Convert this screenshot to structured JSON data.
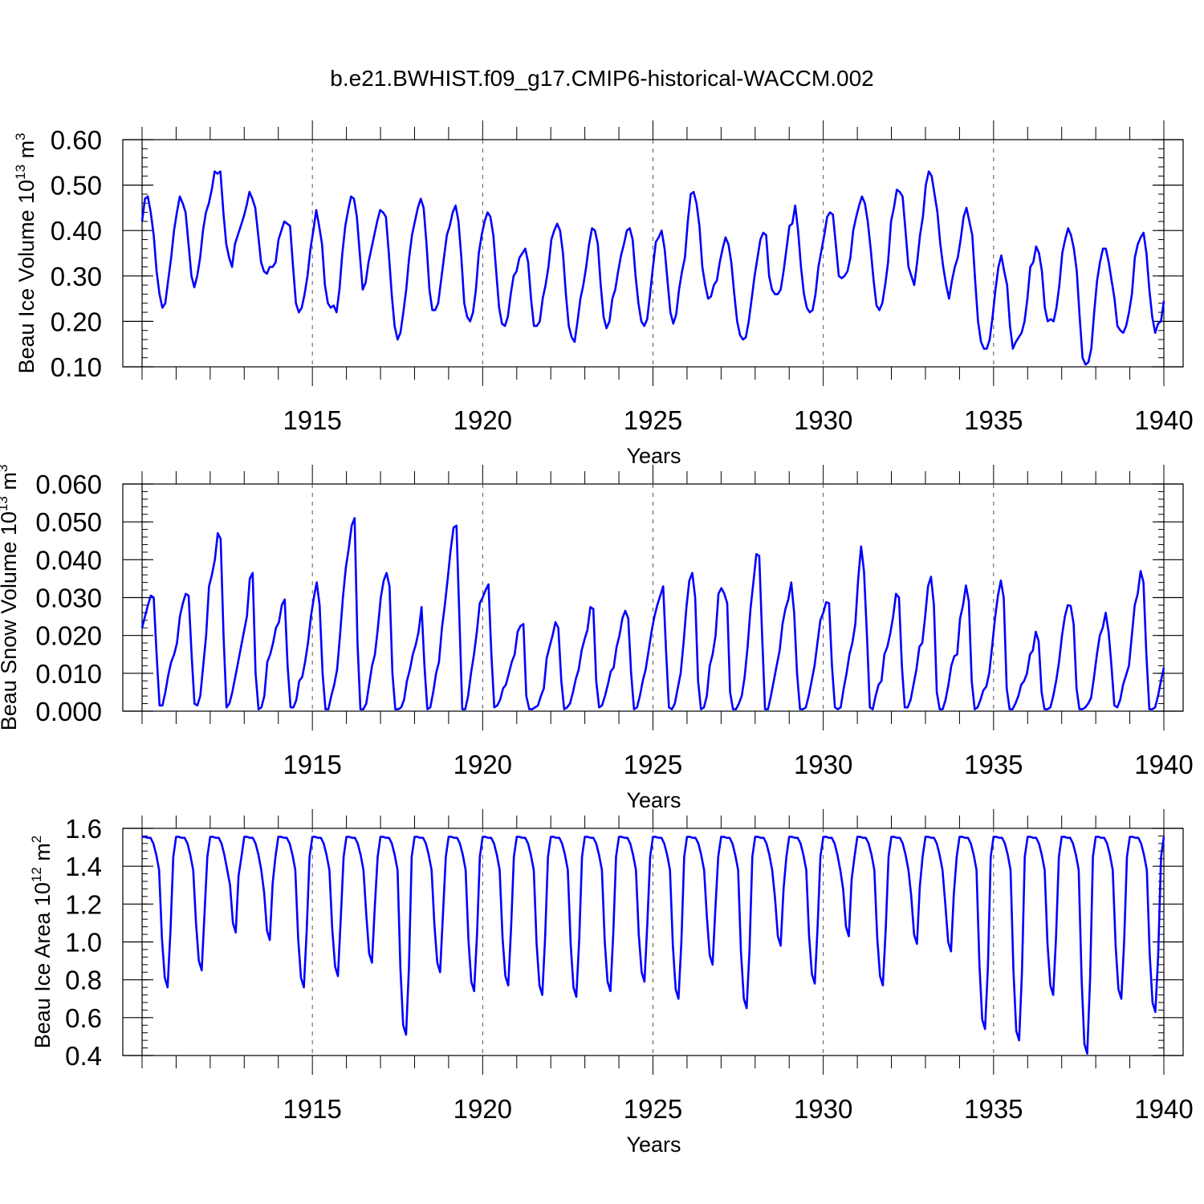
{
  "title": "b.e21.BWHIST.f09_g17.CMIP6-historical-WACCM.002",
  "series_color": "#0000ff",
  "chart_data": [
    {
      "type": "line",
      "ylabel": "Beau Ice Volume 10",
      "ylabel_exp": "13",
      "ylabel_unit": " m",
      "ylabel_unit_exp": "3",
      "xlabel": "Years",
      "xlim": [
        1910.0,
        1940.0
      ],
      "ylim": [
        0.1,
        0.6
      ],
      "yticks": [
        0.1,
        0.2,
        0.3,
        0.4,
        0.5,
        0.6
      ],
      "ytick_labels": [
        "0.10",
        "0.20",
        "0.30",
        "0.40",
        "0.50",
        "0.60"
      ],
      "xticks": [
        1915,
        1920,
        1925,
        1930,
        1935,
        1940
      ],
      "xtick_labels": [
        "1915",
        "1920",
        "1925",
        "1930",
        "1935",
        "1940"
      ],
      "start_year": 1910.0,
      "values": [
        0.42,
        0.47,
        0.475,
        0.44,
        0.39,
        0.31,
        0.26,
        0.23,
        0.24,
        0.29,
        0.34,
        0.4,
        0.44,
        0.475,
        0.46,
        0.44,
        0.37,
        0.3,
        0.275,
        0.3,
        0.34,
        0.4,
        0.44,
        0.46,
        0.49,
        0.53,
        0.525,
        0.53,
        0.44,
        0.37,
        0.34,
        0.32,
        0.37,
        0.39,
        0.41,
        0.43,
        0.455,
        0.485,
        0.47,
        0.45,
        0.39,
        0.33,
        0.31,
        0.305,
        0.32,
        0.32,
        0.33,
        0.38,
        0.4,
        0.42,
        0.415,
        0.41,
        0.32,
        0.24,
        0.22,
        0.23,
        0.26,
        0.3,
        0.36,
        0.4,
        0.445,
        0.41,
        0.37,
        0.28,
        0.24,
        0.23,
        0.235,
        0.22,
        0.27,
        0.35,
        0.41,
        0.445,
        0.475,
        0.47,
        0.43,
        0.35,
        0.27,
        0.285,
        0.33,
        0.36,
        0.39,
        0.42,
        0.445,
        0.44,
        0.43,
        0.35,
        0.26,
        0.19,
        0.16,
        0.175,
        0.22,
        0.27,
        0.34,
        0.39,
        0.42,
        0.45,
        0.47,
        0.45,
        0.37,
        0.27,
        0.225,
        0.225,
        0.24,
        0.29,
        0.34,
        0.39,
        0.41,
        0.44,
        0.455,
        0.42,
        0.34,
        0.24,
        0.21,
        0.2,
        0.22,
        0.27,
        0.35,
        0.39,
        0.42,
        0.44,
        0.43,
        0.39,
        0.31,
        0.23,
        0.195,
        0.19,
        0.21,
        0.26,
        0.3,
        0.31,
        0.34,
        0.35,
        0.36,
        0.33,
        0.25,
        0.19,
        0.19,
        0.2,
        0.25,
        0.28,
        0.32,
        0.38,
        0.4,
        0.415,
        0.4,
        0.35,
        0.26,
        0.19,
        0.165,
        0.155,
        0.2,
        0.25,
        0.28,
        0.32,
        0.37,
        0.405,
        0.4,
        0.37,
        0.28,
        0.21,
        0.185,
        0.2,
        0.25,
        0.27,
        0.31,
        0.345,
        0.37,
        0.4,
        0.405,
        0.38,
        0.3,
        0.24,
        0.2,
        0.19,
        0.205,
        0.26,
        0.32,
        0.375,
        0.385,
        0.4,
        0.36,
        0.29,
        0.22,
        0.195,
        0.215,
        0.27,
        0.31,
        0.34,
        0.42,
        0.48,
        0.485,
        0.46,
        0.41,
        0.32,
        0.28,
        0.25,
        0.255,
        0.28,
        0.29,
        0.33,
        0.36,
        0.385,
        0.37,
        0.33,
        0.26,
        0.2,
        0.17,
        0.16,
        0.165,
        0.2,
        0.25,
        0.3,
        0.34,
        0.38,
        0.395,
        0.39,
        0.3,
        0.27,
        0.26,
        0.26,
        0.27,
        0.31,
        0.36,
        0.41,
        0.415,
        0.455,
        0.4,
        0.32,
        0.26,
        0.23,
        0.22,
        0.225,
        0.26,
        0.32,
        0.355,
        0.39,
        0.43,
        0.44,
        0.435,
        0.37,
        0.3,
        0.295,
        0.3,
        0.31,
        0.34,
        0.4,
        0.43,
        0.455,
        0.475,
        0.46,
        0.42,
        0.36,
        0.29,
        0.235,
        0.225,
        0.24,
        0.28,
        0.33,
        0.42,
        0.45,
        0.49,
        0.485,
        0.475,
        0.4,
        0.32,
        0.3,
        0.28,
        0.33,
        0.39,
        0.43,
        0.5,
        0.53,
        0.52,
        0.48,
        0.44,
        0.37,
        0.32,
        0.28,
        0.25,
        0.29,
        0.32,
        0.34,
        0.38,
        0.43,
        0.45,
        0.42,
        0.39,
        0.29,
        0.2,
        0.155,
        0.14,
        0.14,
        0.16,
        0.21,
        0.27,
        0.32,
        0.345,
        0.31,
        0.28,
        0.19,
        0.14,
        0.155,
        0.165,
        0.175,
        0.2,
        0.25,
        0.32,
        0.33,
        0.365,
        0.35,
        0.31,
        0.23,
        0.2,
        0.205,
        0.2,
        0.23,
        0.28,
        0.35,
        0.38,
        0.405,
        0.39,
        0.36,
        0.31,
        0.21,
        0.12,
        0.105,
        0.11,
        0.14,
        0.22,
        0.29,
        0.33,
        0.36,
        0.36,
        0.33,
        0.29,
        0.25,
        0.19,
        0.18,
        0.175,
        0.19,
        0.22,
        0.26,
        0.34,
        0.37,
        0.385,
        0.395,
        0.35,
        0.27,
        0.21,
        0.175,
        0.195,
        0.2,
        0.245
      ]
    },
    {
      "type": "line",
      "ylabel": "Beau Snow Volume 10",
      "ylabel_exp": "13",
      "ylabel_unit": " m",
      "ylabel_unit_exp": "3",
      "xlabel": "Years",
      "xlim": [
        1910.0,
        1940.0
      ],
      "ylim": [
        0.0,
        0.06
      ],
      "yticks": [
        0.0,
        0.01,
        0.02,
        0.03,
        0.04,
        0.05,
        0.06
      ],
      "ytick_labels": [
        "0.000",
        "0.010",
        "0.020",
        "0.030",
        "0.040",
        "0.050",
        "0.060"
      ],
      "xticks": [
        1915,
        1920,
        1925,
        1930,
        1935,
        1940
      ],
      "xtick_labels": [
        "1915",
        "1920",
        "1925",
        "1930",
        "1935",
        "1940"
      ],
      "start_year": 1910.0,
      "values": [
        0.022,
        0.025,
        0.028,
        0.0305,
        0.03,
        0.015,
        0.0015,
        0.0015,
        0.005,
        0.0095,
        0.013,
        0.015,
        0.018,
        0.025,
        0.0285,
        0.031,
        0.0305,
        0.015,
        0.002,
        0.0015,
        0.004,
        0.012,
        0.02,
        0.033,
        0.036,
        0.04,
        0.047,
        0.0455,
        0.02,
        0.001,
        0.002,
        0.005,
        0.009,
        0.013,
        0.017,
        0.021,
        0.025,
        0.035,
        0.0365,
        0.01,
        0.0005,
        0.001,
        0.004,
        0.013,
        0.015,
        0.018,
        0.022,
        0.0235,
        0.028,
        0.0295,
        0.012,
        0.001,
        0.001,
        0.003,
        0.008,
        0.009,
        0.013,
        0.018,
        0.025,
        0.03,
        0.034,
        0.028,
        0.01,
        0.0005,
        0.0005,
        0.004,
        0.007,
        0.011,
        0.02,
        0.03,
        0.038,
        0.043,
        0.049,
        0.051,
        0.018,
        0.0005,
        0.0005,
        0.002,
        0.007,
        0.012,
        0.015,
        0.022,
        0.03,
        0.0345,
        0.0365,
        0.033,
        0.01,
        0.0005,
        0.0005,
        0.001,
        0.003,
        0.008,
        0.011,
        0.015,
        0.0175,
        0.021,
        0.0275,
        0.012,
        0.0005,
        0.001,
        0.005,
        0.01,
        0.013,
        0.022,
        0.028,
        0.035,
        0.0425,
        0.0485,
        0.049,
        0.025,
        0.0005,
        0.0005,
        0.004,
        0.01,
        0.015,
        0.021,
        0.0285,
        0.03,
        0.032,
        0.0335,
        0.015,
        0.001,
        0.0015,
        0.003,
        0.006,
        0.007,
        0.01,
        0.013,
        0.015,
        0.021,
        0.0225,
        0.023,
        0.004,
        0.0005,
        0.0005,
        0.001,
        0.0015,
        0.004,
        0.006,
        0.014,
        0.017,
        0.02,
        0.0235,
        0.022,
        0.008,
        0.0005,
        0.001,
        0.002,
        0.005,
        0.0085,
        0.011,
        0.016,
        0.019,
        0.0215,
        0.0275,
        0.027,
        0.008,
        0.001,
        0.0015,
        0.004,
        0.007,
        0.0105,
        0.0115,
        0.017,
        0.02,
        0.0245,
        0.0265,
        0.0245,
        0.01,
        0.0005,
        0.001,
        0.004,
        0.008,
        0.011,
        0.016,
        0.021,
        0.025,
        0.028,
        0.0305,
        0.033,
        0.016,
        0.001,
        0.0005,
        0.002,
        0.006,
        0.01,
        0.018,
        0.0275,
        0.0345,
        0.0365,
        0.03,
        0.008,
        0.0005,
        0.001,
        0.004,
        0.012,
        0.015,
        0.02,
        0.031,
        0.0325,
        0.031,
        0.0285,
        0.005,
        0.0005,
        0.0005,
        0.002,
        0.004,
        0.009,
        0.017,
        0.027,
        0.034,
        0.0415,
        0.041,
        0.02,
        0.0005,
        0.0005,
        0.004,
        0.008,
        0.012,
        0.016,
        0.023,
        0.027,
        0.0295,
        0.034,
        0.026,
        0.01,
        0.0005,
        0.0005,
        0.001,
        0.004,
        0.008,
        0.012,
        0.018,
        0.024,
        0.026,
        0.0288,
        0.0285,
        0.012,
        0.001,
        0.0005,
        0.001,
        0.006,
        0.01,
        0.015,
        0.018,
        0.023,
        0.035,
        0.0435,
        0.037,
        0.02,
        0.001,
        0.0005,
        0.004,
        0.007,
        0.008,
        0.015,
        0.017,
        0.0205,
        0.025,
        0.031,
        0.03,
        0.012,
        0.001,
        0.001,
        0.003,
        0.007,
        0.011,
        0.017,
        0.018,
        0.025,
        0.033,
        0.0355,
        0.028,
        0.005,
        0.0005,
        0.0005,
        0.003,
        0.007,
        0.012,
        0.0145,
        0.015,
        0.0245,
        0.028,
        0.0332,
        0.029,
        0.008,
        0.0005,
        0.001,
        0.003,
        0.0055,
        0.0065,
        0.01,
        0.017,
        0.0245,
        0.0305,
        0.0345,
        0.03,
        0.006,
        0.0005,
        0.0005,
        0.002,
        0.004,
        0.007,
        0.008,
        0.01,
        0.015,
        0.016,
        0.021,
        0.0185,
        0.005,
        0.0005,
        0.0005,
        0.001,
        0.004,
        0.008,
        0.013,
        0.02,
        0.025,
        0.028,
        0.0278,
        0.023,
        0.006,
        0.0005,
        0.0005,
        0.001,
        0.002,
        0.0035,
        0.009,
        0.015,
        0.02,
        0.022,
        0.026,
        0.021,
        0.012,
        0.0015,
        0.001,
        0.003,
        0.007,
        0.0095,
        0.012,
        0.02,
        0.028,
        0.031,
        0.037,
        0.034,
        0.015,
        0.0005,
        0.0005,
        0.001,
        0.004,
        0.008,
        0.0115
      ]
    },
    {
      "type": "line",
      "ylabel": "Beau Ice Area 10",
      "ylabel_exp": "12",
      "ylabel_unit": " m",
      "ylabel_unit_exp": "2",
      "xlabel": "Years",
      "xlim": [
        1910.0,
        1940.0
      ],
      "ylim": [
        0.4,
        1.6
      ],
      "yticks": [
        0.4,
        0.6,
        0.8,
        1.0,
        1.2,
        1.4,
        1.6
      ],
      "ytick_labels": [
        "0.4",
        "0.6",
        "0.8",
        "1.0",
        "1.2",
        "1.4",
        "1.6"
      ],
      "xticks": [
        1915,
        1920,
        1925,
        1930,
        1935,
        1940
      ],
      "xtick_labels": [
        "1915",
        "1920",
        "1925",
        "1930",
        "1935",
        "1940"
      ],
      "start_year": 1910.0,
      "min_sep": [
        0.76,
        0.85,
        1.05,
        1.01,
        0.76,
        0.82,
        0.89,
        0.51,
        0.84,
        0.74,
        0.77,
        0.72,
        0.71,
        0.74,
        0.79,
        0.7,
        0.88,
        0.65,
        0.98,
        0.78,
        1.03,
        0.77,
        0.99,
        0.95,
        0.54,
        0.48,
        0.72,
        0.41,
        0.7,
        0.63
      ]
    }
  ]
}
